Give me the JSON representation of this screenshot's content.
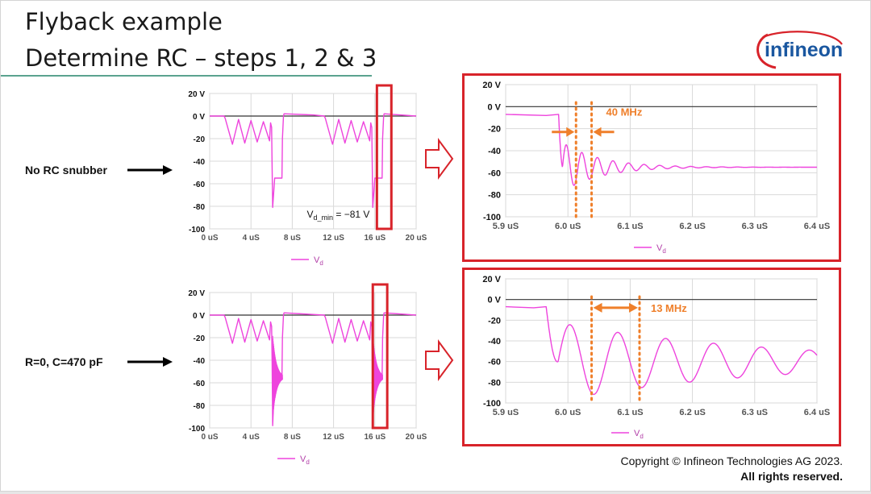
{
  "slide": {
    "title_line1": "Flyback example",
    "title_line2": "Determine RC – steps 1, 2 & 3",
    "logo_text": "infineon",
    "row_labels": [
      "No RC snubber",
      "R=0, C=470 pF"
    ],
    "copyright_line1": "Copyright © Infineon Technologies AG 2023.",
    "copyright_line2": "All rights reserved.",
    "colors": {
      "trace": "#ee44dd",
      "frame": "#d8232a",
      "annotation": "#ef7f2a",
      "rule": "#5aa38f"
    }
  },
  "chart_data": [
    {
      "id": "a",
      "type": "line",
      "title": "",
      "xlabel": "",
      "ylabel": "",
      "x_ticks": [
        "0 uS",
        "4 uS",
        "8 uS",
        "12 uS",
        "16 uS",
        "20 uS"
      ],
      "y_ticks": [
        "20 V",
        "0 V",
        "-20",
        "-40",
        "-60",
        "-80",
        "-100"
      ],
      "xlim": [
        0,
        20
      ],
      "ylim": [
        -100,
        20
      ],
      "grid": true,
      "legend": {
        "position": "bottom",
        "entries": [
          "V",
          "d"
        ]
      },
      "annotation": {
        "text": "V",
        "sub": "d_min",
        "tail": " = −81 V",
        "x": 15.5,
        "y": -90
      },
      "highlight": {
        "x_from": 16.2,
        "x_to": 17.6
      },
      "series": [
        {
          "name": "Vd",
          "x": [
            0,
            1.4,
            1.5,
            2.2,
            2.8,
            3.4,
            4.0,
            4.6,
            5.2,
            5.8,
            5.9,
            6.0,
            6.05,
            6.1,
            6.3,
            6.8,
            7.0,
            7.05,
            7.15,
            7.2,
            10.0,
            11.1,
            11.2,
            11.9,
            12.5,
            13.1,
            13.7,
            14.3,
            14.9,
            15.5,
            15.6,
            15.7,
            15.75,
            15.8,
            16.0,
            16.5,
            16.7,
            16.75,
            16.85,
            16.9,
            20
          ],
          "y": [
            0,
            0,
            -2,
            -25,
            -3,
            -24,
            -4,
            -23,
            -5,
            -22,
            -6,
            -10,
            -45,
            -81,
            -55,
            -55,
            -55,
            -20,
            0,
            2,
            1,
            0,
            -2,
            -25,
            -3,
            -24,
            -4,
            -23,
            -5,
            -22,
            -6,
            -10,
            -45,
            -81,
            -55,
            -55,
            -55,
            -20,
            0,
            2,
            0
          ]
        }
      ]
    },
    {
      "id": "b",
      "type": "line",
      "title": "",
      "xlabel": "",
      "ylabel": "",
      "x_ticks": [
        "0 uS",
        "4 uS",
        "8 uS",
        "12 uS",
        "16 uS",
        "20 uS"
      ],
      "y_ticks": [
        "20 V",
        "0 V",
        "-20",
        "-40",
        "-60",
        "-80",
        "-100"
      ],
      "xlim": [
        0,
        20
      ],
      "ylim": [
        -100,
        20
      ],
      "grid": true,
      "legend": {
        "position": "bottom",
        "entries": [
          "V",
          "d"
        ]
      },
      "highlight": {
        "x_from": 15.8,
        "x_to": 17.2
      },
      "series": [
        {
          "name": "Vd",
          "x": [
            0,
            1.4,
            1.5,
            2.2,
            2.8,
            3.4,
            4.0,
            4.6,
            5.2,
            5.8,
            5.9,
            6.0,
            6.05,
            6.1,
            6.3,
            6.8,
            7.0,
            7.05,
            7.15,
            7.2,
            11.1,
            11.2,
            11.9,
            12.5,
            13.1,
            13.7,
            14.3,
            14.9,
            15.5,
            15.6,
            15.7,
            15.75,
            15.8,
            16.0,
            16.5,
            16.7,
            16.75,
            16.85,
            16.9,
            20
          ],
          "y": [
            0,
            0,
            -2,
            -25,
            -3,
            -24,
            -4,
            -23,
            -5,
            -22,
            -6,
            -10,
            -40,
            -98,
            -55,
            -55,
            -55,
            -20,
            0,
            2,
            0,
            -2,
            -25,
            -3,
            -24,
            -4,
            -23,
            -5,
            -22,
            -6,
            -10,
            -40,
            -98,
            -55,
            -55,
            -55,
            -20,
            0,
            2,
            0
          ]
        }
      ]
    },
    {
      "id": "c",
      "type": "line",
      "title": "",
      "xlabel": "",
      "ylabel": "",
      "x_ticks": [
        "5.9 uS",
        "6.0 uS",
        "6.1 uS",
        "6.2 uS",
        "6.3 uS",
        "6.4 uS"
      ],
      "y_ticks": [
        "20 V",
        "0 V",
        "-20",
        "-40",
        "-60",
        "-80",
        "-100"
      ],
      "xlim": [
        5.9,
        6.4
      ],
      "ylim": [
        -100,
        20
      ],
      "grid": true,
      "legend": {
        "position": "bottom",
        "entries": [
          "V",
          "d"
        ]
      },
      "annotation": {
        "text": "40 MHz",
        "x1": 6.013,
        "x2": 6.038
      },
      "series": [
        {
          "name": "Vd",
          "ring": {
            "t0": 5.985,
            "base": -55,
            "start": -7,
            "amp": 25,
            "freq_mhz": 40,
            "decay_us": 0.06,
            "end": 6.4
          }
        }
      ]
    },
    {
      "id": "d",
      "type": "line",
      "title": "",
      "xlabel": "",
      "ylabel": "",
      "x_ticks": [
        "5.9 uS",
        "6.0 uS",
        "6.1 uS",
        "6.2 uS",
        "6.3 uS",
        "6.4 uS"
      ],
      "y_ticks": [
        "20 V",
        "0 V",
        "-20",
        "-40",
        "-60",
        "-80",
        "-100"
      ],
      "xlim": [
        5.9,
        6.4
      ],
      "ylim": [
        -100,
        20
      ],
      "grid": true,
      "legend": {
        "position": "bottom",
        "entries": [
          "V",
          "d"
        ]
      },
      "annotation": {
        "text": "13 MHz",
        "x1": 6.038,
        "x2": 6.115
      },
      "series": [
        {
          "name": "Vd",
          "ring": {
            "t0": 5.965,
            "base": -60,
            "start": -7,
            "amp": 40,
            "freq_mhz": 13,
            "decay_us": 0.33,
            "end": 6.4
          }
        }
      ]
    }
  ]
}
